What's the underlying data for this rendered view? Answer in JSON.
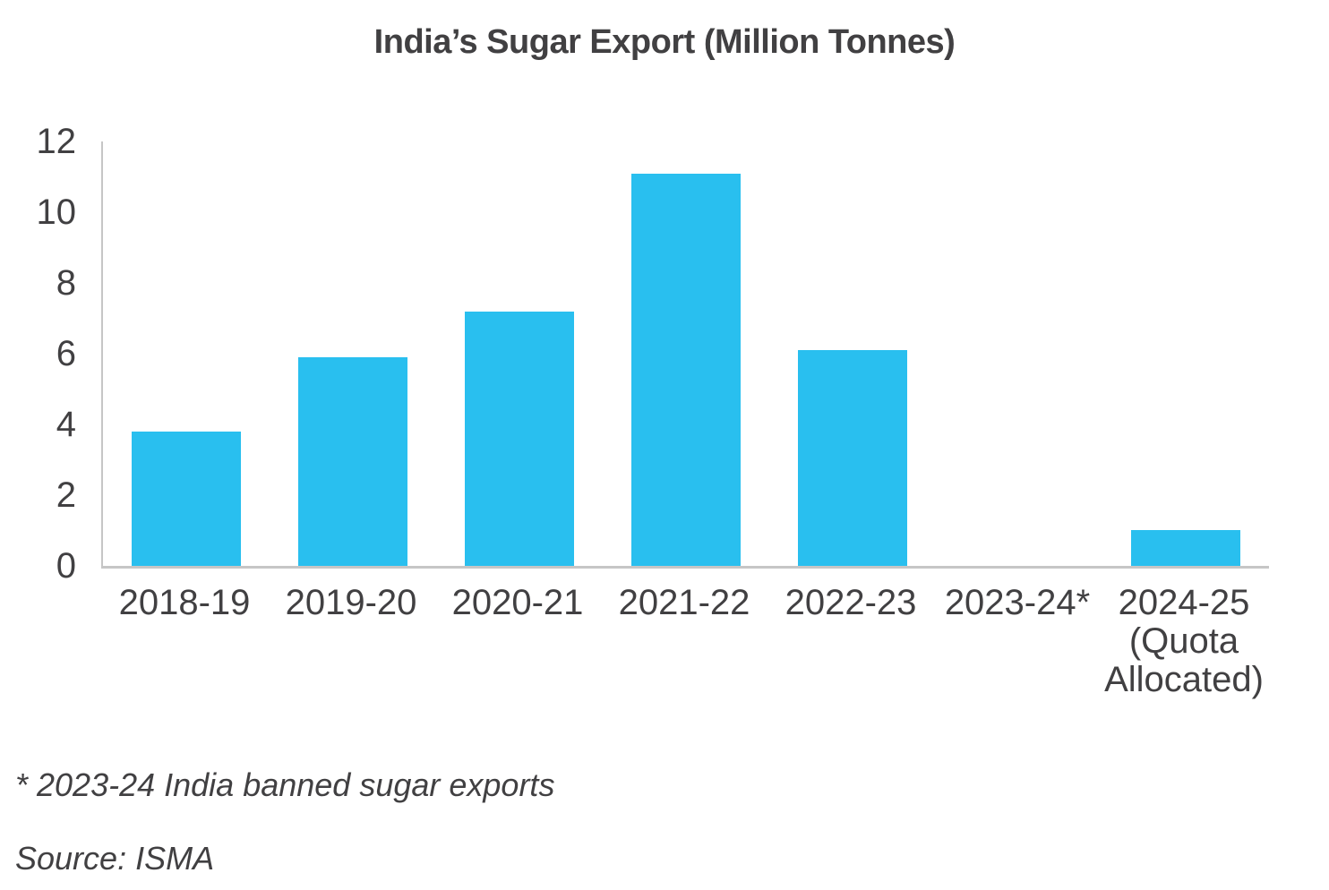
{
  "title": "India’s Sugar Export (Million Tonnes)",
  "footnote": "* 2023-24 India banned sugar exports",
  "source": "Source: ISMA",
  "colors": {
    "bar": "#29BFEF",
    "axis": "#c6c6c6",
    "text": "#414042"
  },
  "chart_data": {
    "type": "bar",
    "title": "India’s Sugar Export (Million Tonnes)",
    "categories": [
      "2018-19",
      "2019-20",
      "2020-21",
      "2021-22",
      "2022-23",
      "2023-24*",
      "2024-25\n(Quota\nAllocated)"
    ],
    "values": [
      3.8,
      5.9,
      7.2,
      11.1,
      6.1,
      0,
      1.0
    ],
    "xlabel": "",
    "ylabel": "",
    "ylim": [
      0,
      12
    ],
    "yticks": [
      0,
      2,
      4,
      6,
      8,
      10,
      12
    ],
    "grid": false,
    "legend": null,
    "bar_color": "#29BFEF",
    "annotations": [
      "* 2023-24 India banned sugar exports",
      "Source: ISMA"
    ]
  }
}
